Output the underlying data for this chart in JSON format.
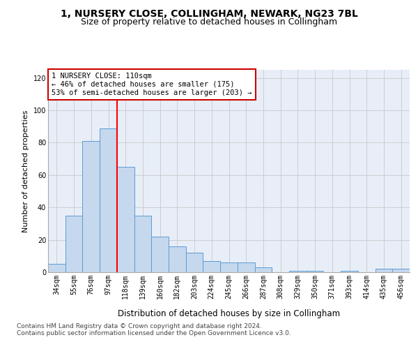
{
  "title": "1, NURSERY CLOSE, COLLINGHAM, NEWARK, NG23 7BL",
  "subtitle": "Size of property relative to detached houses in Collingham",
  "xlabel": "Distribution of detached houses by size in Collingham",
  "ylabel": "Number of detached properties",
  "categories": [
    "34sqm",
    "55sqm",
    "76sqm",
    "97sqm",
    "118sqm",
    "139sqm",
    "160sqm",
    "182sqm",
    "203sqm",
    "224sqm",
    "245sqm",
    "266sqm",
    "287sqm",
    "308sqm",
    "329sqm",
    "350sqm",
    "371sqm",
    "393sqm",
    "414sqm",
    "435sqm",
    "456sqm"
  ],
  "values": [
    5,
    35,
    81,
    89,
    65,
    35,
    22,
    16,
    12,
    7,
    6,
    6,
    3,
    0,
    1,
    1,
    0,
    1,
    0,
    2,
    2
  ],
  "bar_color": "#c5d8ed",
  "bar_edge_color": "#5b9bd5",
  "bar_alpha": 1.0,
  "red_line_index": 3.5,
  "annotation_text": "1 NURSERY CLOSE: 110sqm\n← 46% of detached houses are smaller (175)\n53% of semi-detached houses are larger (203) →",
  "annotation_box_color": "#ffffff",
  "annotation_box_edge": "#cc0000",
  "ylim": [
    0,
    125
  ],
  "yticks": [
    0,
    20,
    40,
    60,
    80,
    100,
    120
  ],
  "grid_color": "#cccccc",
  "background_color": "#e8eef8",
  "footer_line1": "Contains HM Land Registry data © Crown copyright and database right 2024.",
  "footer_line2": "Contains public sector information licensed under the Open Government Licence v3.0.",
  "title_fontsize": 10,
  "subtitle_fontsize": 9,
  "xlabel_fontsize": 8.5,
  "ylabel_fontsize": 8,
  "tick_fontsize": 7,
  "annotation_fontsize": 7.5,
  "footer_fontsize": 6.5
}
